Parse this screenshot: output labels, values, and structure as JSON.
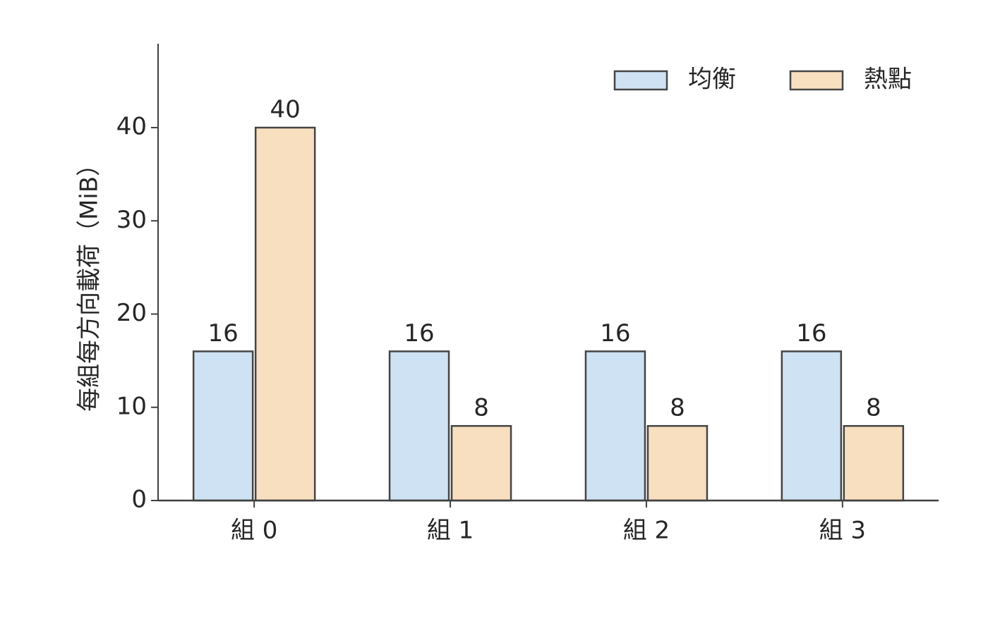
{
  "chart_data": {
    "type": "bar",
    "ylabel": "每組每方向載荷（MiB）",
    "categories": [
      "組 0",
      "組 1",
      "組 2",
      "組 3"
    ],
    "series": [
      {
        "name": "均衡",
        "color": "#cfe2f3",
        "values": [
          16,
          16,
          16,
          16
        ]
      },
      {
        "name": "熱點",
        "color": "#f8dfc0",
        "values": [
          40,
          8,
          8,
          8
        ]
      }
    ],
    "ylim": [
      0,
      49
    ],
    "yticks": [
      0,
      10,
      20,
      30,
      40
    ],
    "legend": "upper right"
  }
}
